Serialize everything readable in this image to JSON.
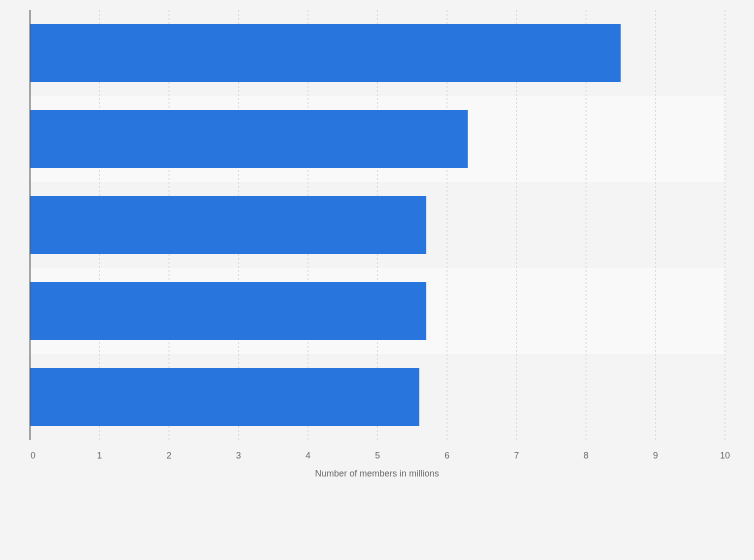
{
  "chart_data": {
    "type": "hbar",
    "categories": [
      null,
      null,
      null,
      null,
      null
    ],
    "values": [
      8.5,
      6.3,
      5.7,
      5.7,
      5.6
    ],
    "color": "#2876dd",
    "xlim": [
      0,
      10
    ],
    "xticks": [
      0,
      1,
      2,
      3,
      4,
      5,
      6,
      7,
      8,
      9,
      10
    ],
    "x_label": "Number of members in millions",
    "grid": true
  }
}
